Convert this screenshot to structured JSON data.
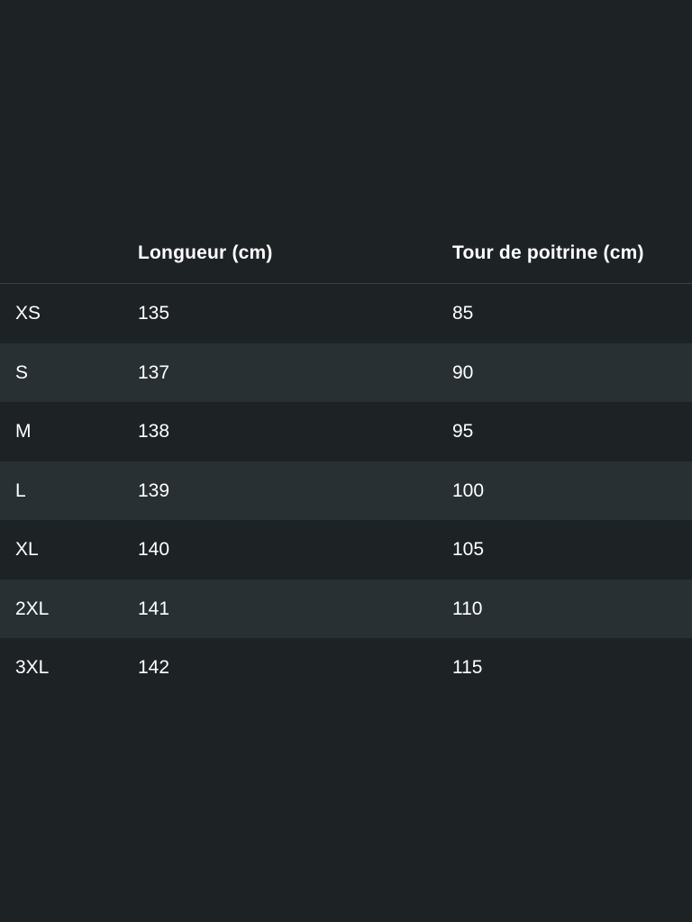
{
  "table": {
    "headers": [
      "",
      "Longueur (cm)",
      "Tour de poitrine (cm)"
    ],
    "rows": [
      [
        "XS",
        "135",
        "85"
      ],
      [
        "S",
        "137",
        "90"
      ],
      [
        "M",
        "138",
        "95"
      ],
      [
        "L",
        "139",
        "100"
      ],
      [
        "XL",
        "140",
        "105"
      ],
      [
        "2XL",
        "141",
        "110"
      ],
      [
        "3XL",
        "142",
        "115"
      ]
    ]
  },
  "colors": {
    "background": "#1d2225",
    "row_alt": "#283033",
    "divider": "#3b4246",
    "text": "#ffffff"
  }
}
